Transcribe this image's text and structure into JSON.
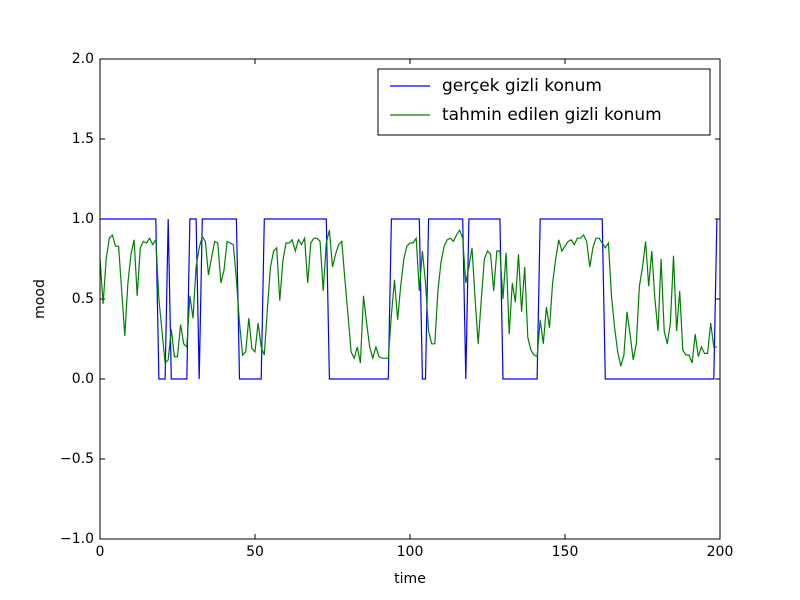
{
  "chart_data": {
    "type": "line",
    "x_label": "time",
    "y_label": "mood",
    "xlim": [
      0,
      200
    ],
    "ylim": [
      -1.0,
      2.0
    ],
    "xticks": [
      0,
      50,
      100,
      150,
      200
    ],
    "yticks": [
      {
        "value": -1.0,
        "label": "−1.0"
      },
      {
        "value": -0.5,
        "label": "−0.5"
      },
      {
        "value": 0.0,
        "label": "0.0"
      },
      {
        "value": 0.5,
        "label": "0.5"
      },
      {
        "value": 1.0,
        "label": "1.0"
      },
      {
        "value": 1.5,
        "label": "1.5"
      },
      {
        "value": 2.0,
        "label": "2.0"
      }
    ],
    "legend": "upper right",
    "x": [
      0,
      1,
      2,
      3,
      4,
      5,
      6,
      7,
      8,
      9,
      10,
      11,
      12,
      13,
      14,
      15,
      16,
      17,
      18,
      19,
      20,
      21,
      22,
      23,
      24,
      25,
      26,
      27,
      28,
      29,
      30,
      31,
      32,
      33,
      34,
      35,
      36,
      37,
      38,
      39,
      40,
      41,
      42,
      43,
      44,
      45,
      46,
      47,
      48,
      49,
      50,
      51,
      52,
      53,
      54,
      55,
      56,
      57,
      58,
      59,
      60,
      61,
      62,
      63,
      64,
      65,
      66,
      67,
      68,
      69,
      70,
      71,
      72,
      73,
      74,
      75,
      76,
      77,
      78,
      79,
      80,
      81,
      82,
      83,
      84,
      85,
      86,
      87,
      88,
      89,
      90,
      91,
      92,
      93,
      94,
      95,
      96,
      97,
      98,
      99,
      100,
      101,
      102,
      103,
      104,
      105,
      106,
      107,
      108,
      109,
      110,
      111,
      112,
      113,
      114,
      115,
      116,
      117,
      118,
      119,
      120,
      121,
      122,
      123,
      124,
      125,
      126,
      127,
      128,
      129,
      130,
      131,
      132,
      133,
      134,
      135,
      136,
      137,
      138,
      139,
      140,
      141,
      142,
      143,
      144,
      145,
      146,
      147,
      148,
      149,
      150,
      151,
      152,
      153,
      154,
      155,
      156,
      157,
      158,
      159,
      160,
      161,
      162,
      163,
      164,
      165,
      166,
      167,
      168,
      169,
      170,
      171,
      172,
      173,
      174,
      175,
      176,
      177,
      178,
      179,
      180,
      181,
      182,
      183,
      184,
      185,
      186,
      187,
      188,
      189,
      190,
      191,
      192,
      193,
      194,
      195,
      196,
      197,
      198,
      199
    ],
    "series": [
      {
        "name": "gerçek gizli konum",
        "color": "#0000ff",
        "values": [
          1,
          1,
          1,
          1,
          1,
          1,
          1,
          1,
          1,
          1,
          1,
          1,
          1,
          1,
          1,
          1,
          1,
          1,
          1,
          0,
          0,
          0,
          1,
          0,
          0,
          0,
          0,
          0,
          0,
          1,
          1,
          1,
          0,
          1,
          1,
          1,
          1,
          1,
          1,
          1,
          1,
          1,
          1,
          1,
          1,
          0,
          0,
          0,
          0,
          0,
          0,
          0,
          0,
          1,
          1,
          1,
          1,
          1,
          1,
          1,
          1,
          1,
          1,
          1,
          1,
          1,
          1,
          1,
          1,
          1,
          1,
          1,
          1,
          1,
          0,
          0,
          0,
          0,
          0,
          0,
          0,
          0,
          0,
          0,
          0,
          0,
          0,
          0,
          0,
          0,
          0,
          0,
          0,
          0,
          1,
          1,
          1,
          1,
          1,
          1,
          1,
          1,
          1,
          1,
          0,
          0,
          1,
          1,
          1,
          1,
          1,
          1,
          1,
          1,
          1,
          1,
          1,
          1,
          0,
          1,
          1,
          1,
          1,
          1,
          1,
          1,
          1,
          1,
          1,
          1,
          0,
          0,
          0,
          0,
          0,
          0,
          0,
          0,
          0,
          0,
          0,
          0,
          1,
          1,
          1,
          1,
          1,
          1,
          1,
          1,
          1,
          1,
          1,
          1,
          1,
          1,
          1,
          1,
          1,
          1,
          1,
          1,
          1,
          0,
          0,
          0,
          0,
          0,
          0,
          0,
          0,
          0,
          0,
          0,
          0,
          0,
          0,
          0,
          0,
          0,
          0,
          0,
          0,
          0,
          0,
          0,
          0,
          0,
          0,
          0,
          0,
          0,
          0,
          0,
          0,
          0,
          0,
          0,
          0,
          1
        ]
      },
      {
        "name": "tahmin edilen gizli konum",
        "color": "#008000",
        "values": [
          0.75,
          0.47,
          0.75,
          0.88,
          0.9,
          0.83,
          0.83,
          0.55,
          0.27,
          0.6,
          0.78,
          0.87,
          0.52,
          0.82,
          0.86,
          0.85,
          0.88,
          0.84,
          0.87,
          0.5,
          0.3,
          0.1,
          0.12,
          0.31,
          0.14,
          0.14,
          0.34,
          0.22,
          0.2,
          0.52,
          0.38,
          0.7,
          0.82,
          0.89,
          0.86,
          0.65,
          0.76,
          0.86,
          0.85,
          0.6,
          0.68,
          0.86,
          0.85,
          0.84,
          0.62,
          0.35,
          0.15,
          0.17,
          0.38,
          0.19,
          0.17,
          0.35,
          0.2,
          0.15,
          0.44,
          0.7,
          0.8,
          0.82,
          0.49,
          0.74,
          0.85,
          0.85,
          0.87,
          0.8,
          0.87,
          0.84,
          0.88,
          0.6,
          0.85,
          0.88,
          0.88,
          0.86,
          0.55,
          0.85,
          0.93,
          0.7,
          0.78,
          0.84,
          0.86,
          0.62,
          0.4,
          0.17,
          0.13,
          0.2,
          0.1,
          0.52,
          0.35,
          0.2,
          0.13,
          0.2,
          0.14,
          0.13,
          0.13,
          0.13,
          0.4,
          0.62,
          0.37,
          0.58,
          0.75,
          0.83,
          0.85,
          0.85,
          0.88,
          0.55,
          0.8,
          0.6,
          0.3,
          0.22,
          0.22,
          0.55,
          0.73,
          0.83,
          0.87,
          0.88,
          0.86,
          0.9,
          0.93,
          0.88,
          0.6,
          0.7,
          0.82,
          0.5,
          0.22,
          0.5,
          0.75,
          0.8,
          0.78,
          0.55,
          0.8,
          0.8,
          0.5,
          0.79,
          0.28,
          0.6,
          0.48,
          0.78,
          0.42,
          0.7,
          0.26,
          0.18,
          0.15,
          0.14,
          0.37,
          0.22,
          0.45,
          0.32,
          0.6,
          0.75,
          0.87,
          0.8,
          0.83,
          0.86,
          0.87,
          0.84,
          0.88,
          0.88,
          0.9,
          0.86,
          0.7,
          0.82,
          0.88,
          0.88,
          0.85,
          0.82,
          0.85,
          0.52,
          0.32,
          0.17,
          0.08,
          0.15,
          0.42,
          0.28,
          0.12,
          0.22,
          0.58,
          0.7,
          0.86,
          0.58,
          0.8,
          0.5,
          0.3,
          0.75,
          0.3,
          0.22,
          0.35,
          0.77,
          0.3,
          0.55,
          0.18,
          0.15,
          0.15,
          0.1,
          0.28,
          0.14,
          0.2,
          0.16,
          0.16,
          0.35,
          0.2,
          0.2
        ]
      }
    ]
  }
}
